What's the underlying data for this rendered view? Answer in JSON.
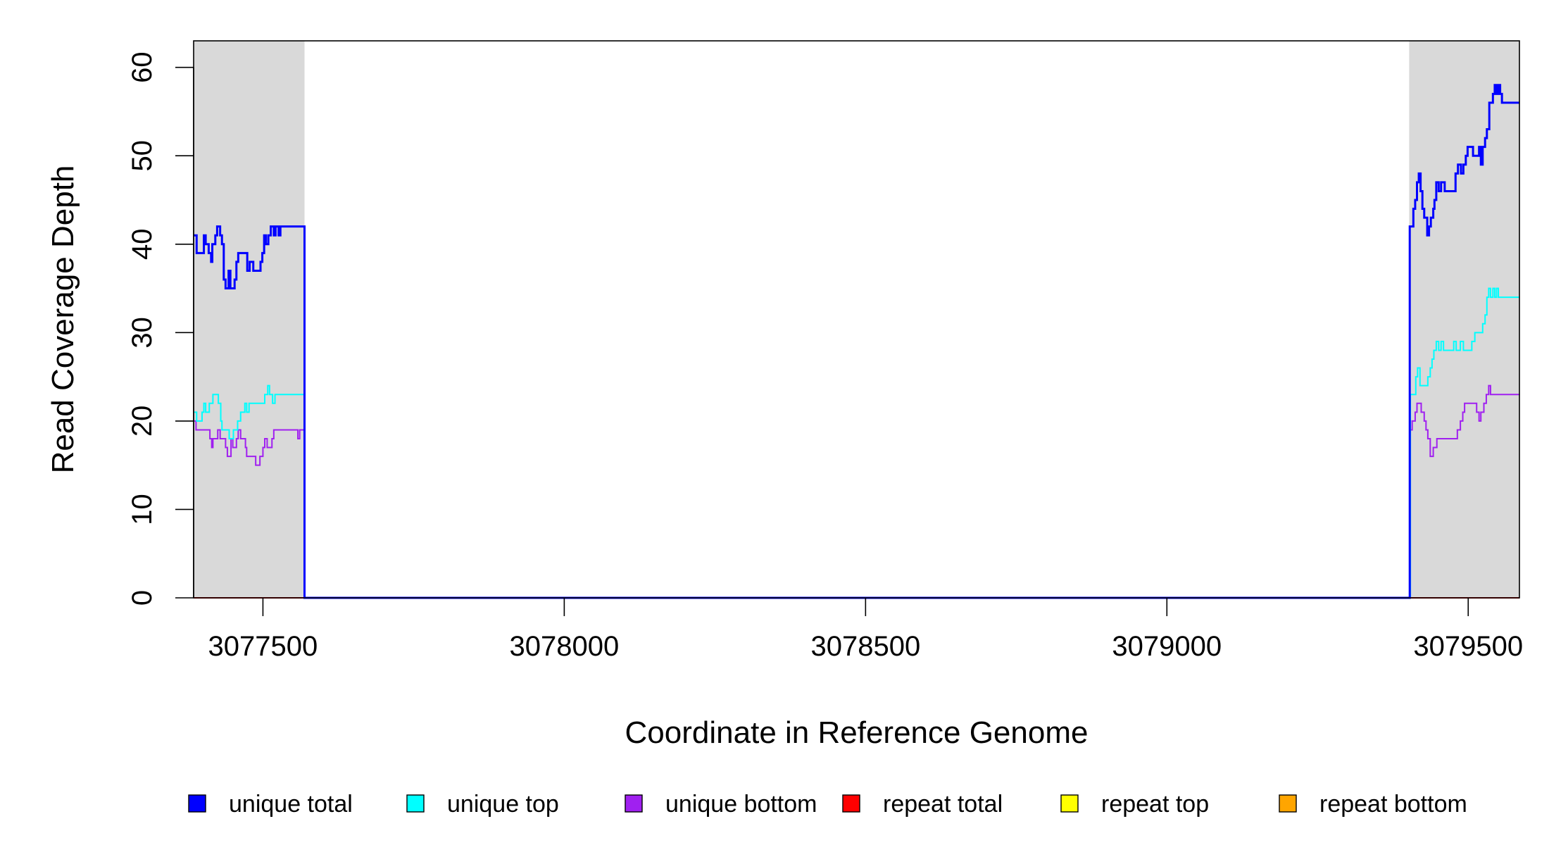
{
  "chart_data": {
    "type": "line",
    "title": "",
    "xlabel": "Coordinate in Reference Genome",
    "ylabel": "Read Coverage Depth",
    "xlim": [
      3077385,
      3079585
    ],
    "ylim": [
      0,
      63
    ],
    "x_ticks": [
      3077500,
      3078000,
      3078500,
      3079000,
      3079500
    ],
    "x_tick_labels": [
      "3077500",
      "3078000",
      "3078500",
      "3079000",
      "3079500"
    ],
    "y_ticks": [
      0,
      10,
      20,
      30,
      40,
      50,
      60
    ],
    "y_tick_labels": [
      "0",
      "10",
      "20",
      "30",
      "40",
      "50",
      "60"
    ],
    "shaded_regions": [
      {
        "x_start": 3077385,
        "x_end": 3077569,
        "color": "#d9d9d9"
      },
      {
        "x_start": 3079402,
        "x_end": 3079585,
        "color": "#d9d9d9"
      }
    ],
    "legend_position": "bottom",
    "series": [
      {
        "name": "unique total",
        "color": "#0000ff",
        "step": true,
        "points": [
          [
            3077385,
            41
          ],
          [
            3077390,
            39
          ],
          [
            3077397,
            39
          ],
          [
            3077402,
            41
          ],
          [
            3077405,
            40
          ],
          [
            3077410,
            39
          ],
          [
            3077414,
            38
          ],
          [
            3077416,
            40
          ],
          [
            3077421,
            41
          ],
          [
            3077424,
            42
          ],
          [
            3077429,
            41
          ],
          [
            3077432,
            40
          ],
          [
            3077435,
            36
          ],
          [
            3077438,
            35
          ],
          [
            3077443,
            37
          ],
          [
            3077446,
            35
          ],
          [
            3077453,
            36
          ],
          [
            3077456,
            38
          ],
          [
            3077459,
            39
          ],
          [
            3077474,
            37
          ],
          [
            3077478,
            38
          ],
          [
            3077484,
            37
          ],
          [
            3077496,
            38
          ],
          [
            3077499,
            39
          ],
          [
            3077502,
            41
          ],
          [
            3077505,
            40
          ],
          [
            3077509,
            41
          ],
          [
            3077513,
            42
          ],
          [
            3077518,
            41
          ],
          [
            3077521,
            42
          ],
          [
            3077526,
            41
          ],
          [
            3077529,
            42
          ],
          [
            3077566,
            42
          ],
          [
            3077569,
            0
          ],
          [
            3079402,
            0
          ],
          [
            3079403,
            42
          ],
          [
            3079409,
            44
          ],
          [
            3079412,
            45
          ],
          [
            3079415,
            47
          ],
          [
            3079418,
            48
          ],
          [
            3079421,
            46
          ],
          [
            3079424,
            44
          ],
          [
            3079427,
            43
          ],
          [
            3079432,
            41
          ],
          [
            3079435,
            42
          ],
          [
            3079438,
            43
          ],
          [
            3079442,
            44
          ],
          [
            3079444,
            45
          ],
          [
            3079447,
            47
          ],
          [
            3079451,
            46
          ],
          [
            3079455,
            47
          ],
          [
            3079461,
            46
          ],
          [
            3079479,
            48
          ],
          [
            3079483,
            49
          ],
          [
            3079488,
            48
          ],
          [
            3079492,
            49
          ],
          [
            3079496,
            50
          ],
          [
            3079499,
            51
          ],
          [
            3079508,
            50
          ],
          [
            3079518,
            51
          ],
          [
            3079521,
            49
          ],
          [
            3079524,
            51
          ],
          [
            3079528,
            52
          ],
          [
            3079531,
            53
          ],
          [
            3079535,
            56
          ],
          [
            3079541,
            57
          ],
          [
            3079544,
            58
          ],
          [
            3079547,
            57
          ],
          [
            3079550,
            58
          ],
          [
            3079553,
            57
          ],
          [
            3079556,
            56
          ],
          [
            3079585,
            56
          ]
        ]
      },
      {
        "name": "unique top",
        "color": "#00ffff",
        "step": true,
        "points": [
          [
            3077385,
            21
          ],
          [
            3077390,
            20
          ],
          [
            3077399,
            21
          ],
          [
            3077402,
            22
          ],
          [
            3077405,
            21
          ],
          [
            3077411,
            22
          ],
          [
            3077417,
            23
          ],
          [
            3077426,
            22
          ],
          [
            3077430,
            20
          ],
          [
            3077432,
            19
          ],
          [
            3077444,
            18
          ],
          [
            3077451,
            19
          ],
          [
            3077458,
            20
          ],
          [
            3077463,
            21
          ],
          [
            3077470,
            22
          ],
          [
            3077473,
            21
          ],
          [
            3077477,
            22
          ],
          [
            3077498,
            22
          ],
          [
            3077503,
            23
          ],
          [
            3077508,
            24
          ],
          [
            3077511,
            23
          ],
          [
            3077516,
            22
          ],
          [
            3077520,
            23
          ],
          [
            3077566,
            23
          ],
          [
            3077569,
            0
          ],
          [
            3079402,
            0
          ],
          [
            3079404,
            23
          ],
          [
            3079413,
            25
          ],
          [
            3079416,
            26
          ],
          [
            3079420,
            24
          ],
          [
            3079433,
            25
          ],
          [
            3079437,
            26
          ],
          [
            3079440,
            27
          ],
          [
            3079443,
            28
          ],
          [
            3079447,
            29
          ],
          [
            3079451,
            28
          ],
          [
            3079455,
            29
          ],
          [
            3079459,
            28
          ],
          [
            3079476,
            29
          ],
          [
            3079480,
            28
          ],
          [
            3079487,
            29
          ],
          [
            3079492,
            28
          ],
          [
            3079506,
            29
          ],
          [
            3079511,
            30
          ],
          [
            3079524,
            31
          ],
          [
            3079528,
            32
          ],
          [
            3079531,
            34
          ],
          [
            3079534,
            35
          ],
          [
            3079537,
            34
          ],
          [
            3079541,
            35
          ],
          [
            3079544,
            34
          ],
          [
            3079547,
            35
          ],
          [
            3079550,
            34
          ],
          [
            3079585,
            34
          ]
        ]
      },
      {
        "name": "unique bottom",
        "color": "#a020f0",
        "step": true,
        "points": [
          [
            3077385,
            20
          ],
          [
            3077389,
            19
          ],
          [
            3077412,
            18
          ],
          [
            3077415,
            17
          ],
          [
            3077417,
            18
          ],
          [
            3077425,
            19
          ],
          [
            3077429,
            18
          ],
          [
            3077438,
            17
          ],
          [
            3077441,
            16
          ],
          [
            3077447,
            18
          ],
          [
            3077450,
            17
          ],
          [
            3077456,
            18
          ],
          [
            3077459,
            19
          ],
          [
            3077463,
            18
          ],
          [
            3077471,
            17
          ],
          [
            3077473,
            16
          ],
          [
            3077488,
            15
          ],
          [
            3077495,
            16
          ],
          [
            3077500,
            17
          ],
          [
            3077503,
            18
          ],
          [
            3077507,
            17
          ],
          [
            3077515,
            18
          ],
          [
            3077518,
            19
          ],
          [
            3077558,
            18
          ],
          [
            3077561,
            19
          ],
          [
            3077566,
            19
          ],
          [
            3077569,
            0
          ],
          [
            3079402,
            0
          ],
          [
            3079404,
            19
          ],
          [
            3079407,
            20
          ],
          [
            3079412,
            21
          ],
          [
            3079415,
            22
          ],
          [
            3079422,
            21
          ],
          [
            3079427,
            20
          ],
          [
            3079430,
            19
          ],
          [
            3079433,
            18
          ],
          [
            3079437,
            16
          ],
          [
            3079442,
            17
          ],
          [
            3079448,
            18
          ],
          [
            3079482,
            19
          ],
          [
            3079487,
            20
          ],
          [
            3079491,
            21
          ],
          [
            3079494,
            22
          ],
          [
            3079514,
            21
          ],
          [
            3079518,
            20
          ],
          [
            3079521,
            21
          ],
          [
            3079526,
            22
          ],
          [
            3079530,
            23
          ],
          [
            3079534,
            24
          ],
          [
            3079537,
            23
          ],
          [
            3079585,
            23
          ]
        ]
      },
      {
        "name": "repeat total",
        "color": "#ff0000",
        "step": true,
        "points": [
          [
            3077385,
            0
          ],
          [
            3079585,
            0
          ]
        ]
      },
      {
        "name": "repeat top",
        "color": "#ffff00",
        "step": true,
        "points": [
          [
            3077385,
            0
          ],
          [
            3079585,
            0
          ]
        ]
      },
      {
        "name": "repeat bottom",
        "color": "#ffa500",
        "step": true,
        "points": [
          [
            3077385,
            0
          ],
          [
            3079585,
            0
          ]
        ]
      }
    ]
  }
}
